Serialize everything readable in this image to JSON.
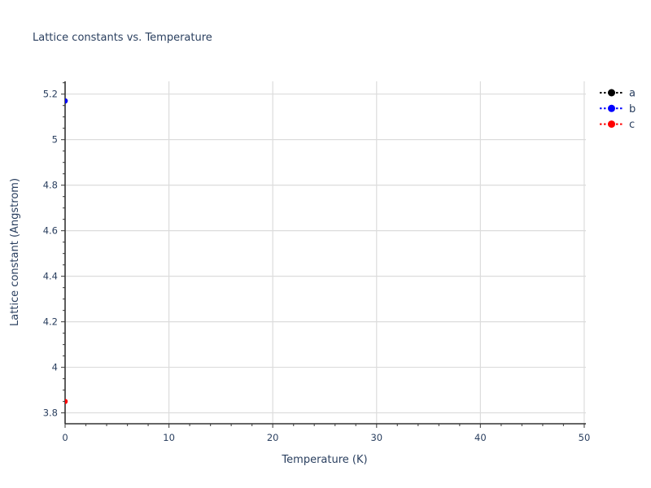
{
  "chart_data": {
    "type": "scatter",
    "title": "Lattice constants vs. Temperature",
    "xlabel": "Temperature (K)",
    "ylabel": "Lattice  constant (Angstrom)",
    "xlim": [
      0,
      50.16
    ],
    "ylim": [
      3.752,
      5.256
    ],
    "grid": true,
    "x_ticks": [
      {
        "v": 0,
        "label": "0"
      },
      {
        "v": 10,
        "label": "10"
      },
      {
        "v": 20,
        "label": "20"
      },
      {
        "v": 30,
        "label": "30"
      },
      {
        "v": 40,
        "label": "40"
      },
      {
        "v": 50,
        "label": "50"
      }
    ],
    "x_minor_step": 2,
    "y_ticks": [
      {
        "v": 3.8,
        "label": "3.8"
      },
      {
        "v": 4.0,
        "label": "4"
      },
      {
        "v": 4.2,
        "label": "4.2"
      },
      {
        "v": 4.4,
        "label": "4.4"
      },
      {
        "v": 4.6,
        "label": "4.6"
      },
      {
        "v": 4.8,
        "label": "4.8"
      },
      {
        "v": 5.0,
        "label": "5"
      },
      {
        "v": 5.2,
        "label": "5.2"
      }
    ],
    "y_minor_step": 0.05,
    "series": [
      {
        "name": "a",
        "color": "#000000",
        "points": [
          {
            "x": 0,
            "y": 5.17
          }
        ],
        "visibility": "occluded-behind-b"
      },
      {
        "name": "b",
        "color": "#0000ff",
        "points": [
          {
            "x": 0,
            "y": 5.17
          }
        ],
        "visibility": "visible"
      },
      {
        "name": "c",
        "color": "#ff0000",
        "points": [
          {
            "x": 0,
            "y": 3.85
          }
        ],
        "visibility": "visible"
      }
    ],
    "legend": {
      "position": "outside-top-right",
      "entries": [
        "a",
        "b",
        "c"
      ]
    },
    "colors": {
      "font": "#2a3f5f",
      "grid": "#dcdcdc",
      "axis": "#333333",
      "tick": "#555555",
      "background": "#ffffff"
    }
  }
}
